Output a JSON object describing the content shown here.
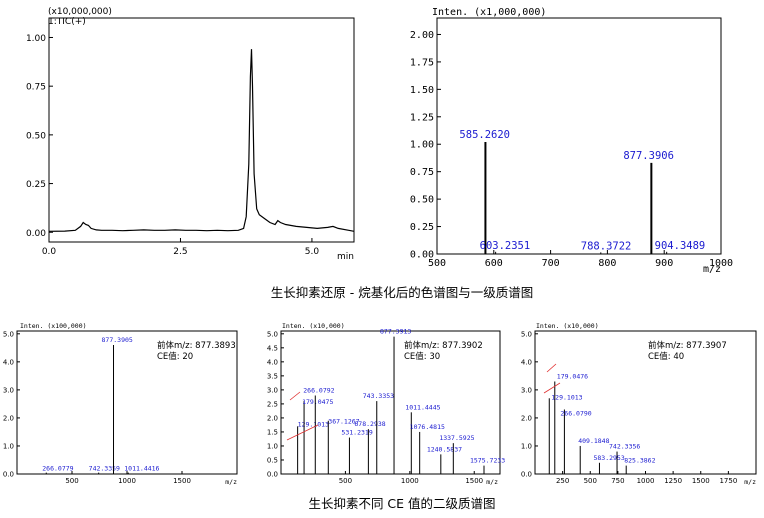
{
  "captions": {
    "top": "生长抑素还原 - 烷基化后的色谱图与一级质谱图",
    "bottom": "生长抑素不同 CE 值的二级质谱图"
  },
  "chart_data": [
    {
      "id": "tic",
      "type": "line",
      "scale_label": "(x10,000,000)",
      "series_label": "1:TIC(+)",
      "xlabel": "min",
      "xlim": [
        0,
        5.8
      ],
      "ylim": [
        -0.05,
        1.1
      ],
      "x_ticks": [
        "0.0",
        "2.5",
        "5.0"
      ],
      "x_tick_values": [
        0,
        2.5,
        5.0
      ],
      "y_ticks": [
        "0.00",
        "0.25",
        "0.50",
        "0.75",
        "1.00"
      ],
      "y_tick_values": [
        0,
        0.25,
        0.5,
        0.75,
        1.0
      ],
      "x": [
        0.0,
        0.3,
        0.5,
        0.6,
        0.65,
        0.7,
        0.75,
        0.8,
        0.9,
        1.0,
        1.2,
        1.4,
        1.6,
        1.8,
        2.0,
        2.2,
        2.4,
        2.6,
        2.8,
        3.0,
        3.2,
        3.4,
        3.6,
        3.7,
        3.75,
        3.8,
        3.83,
        3.85,
        3.87,
        3.9,
        3.95,
        4.0,
        4.1,
        4.2,
        4.3,
        4.35,
        4.4,
        4.5,
        4.7,
        4.9,
        5.1,
        5.3,
        5.4,
        5.5,
        5.7,
        5.8
      ],
      "y": [
        0.005,
        0.006,
        0.01,
        0.03,
        0.05,
        0.04,
        0.035,
        0.02,
        0.012,
        0.01,
        0.01,
        0.008,
        0.01,
        0.012,
        0.01,
        0.01,
        0.012,
        0.01,
        0.01,
        0.008,
        0.01,
        0.008,
        0.01,
        0.02,
        0.08,
        0.35,
        0.8,
        0.94,
        0.75,
        0.3,
        0.12,
        0.09,
        0.07,
        0.05,
        0.04,
        0.06,
        0.05,
        0.04,
        0.03,
        0.025,
        0.02,
        0.025,
        0.03,
        0.02,
        0.01,
        0.005
      ]
    },
    {
      "id": "ms1",
      "type": "bar",
      "scale_label": "Inten. (x1,000,000)",
      "xlabel": "m/z",
      "xlim": [
        500,
        1000
      ],
      "ylim": [
        0,
        2.15
      ],
      "x_ticks": [
        "500",
        "600",
        "700",
        "800",
        "900",
        "1000"
      ],
      "x_tick_values": [
        500,
        600,
        700,
        800,
        900,
        1000
      ],
      "y_ticks": [
        "0.00",
        "0.25",
        "0.50",
        "0.75",
        "1.00",
        "1.25",
        "1.50",
        "1.75",
        "2.00"
      ],
      "y_tick_values": [
        0,
        0.25,
        0.5,
        0.75,
        1.0,
        1.25,
        1.5,
        1.75,
        2.0
      ],
      "peaks": [
        {
          "mz": 585.262,
          "intensity": 1.02,
          "label": "585.2620"
        },
        {
          "mz": 603.2351,
          "intensity": 0.02,
          "label": "603.2351"
        },
        {
          "mz": 788.3722,
          "intensity": 0.015,
          "label": "788.3722"
        },
        {
          "mz": 877.3906,
          "intensity": 0.83,
          "label": "877.3906"
        },
        {
          "mz": 904.3489,
          "intensity": 0.02,
          "label": "904.3489"
        }
      ]
    },
    {
      "id": "ms2-ce20",
      "type": "bar",
      "scale_label": "Inten. (x100,000)",
      "xlabel": "m/z",
      "precursor_text": "前体m/z: 877.3893",
      "ce_text": "CE值: 20",
      "xlim": [
        0,
        2000
      ],
      "ylim": [
        0,
        5.1
      ],
      "x_ticks": [
        "500",
        "1000",
        "1500"
      ],
      "x_tick_values": [
        500,
        1000,
        1500
      ],
      "y_ticks": [
        "0.0",
        "1.0",
        "2.0",
        "3.0",
        "4.0",
        "5.0"
      ],
      "y_tick_values": [
        0,
        1,
        2,
        3,
        4,
        5
      ],
      "peaks": [
        {
          "mz": 266.0779,
          "intensity": 0.05,
          "label": "266.0779"
        },
        {
          "mz": 742.3359,
          "intensity": 0.05,
          "label": "742.3359"
        },
        {
          "mz": 877.3905,
          "intensity": 4.6,
          "label": "877.3905"
        },
        {
          "mz": 1011.4416,
          "intensity": 0.05,
          "label": "1011.4416"
        }
      ]
    },
    {
      "id": "ms2-ce30",
      "type": "bar",
      "scale_label": "Inten. (x10,000)",
      "xlabel": "m/z",
      "precursor_text": "前体m/z: 877.3902",
      "ce_text": "CE值: 30",
      "xlim": [
        0,
        1700
      ],
      "ylim": [
        0,
        5.1
      ],
      "x_ticks": [
        "500",
        "1000",
        "1500"
      ],
      "x_tick_values": [
        500,
        1000,
        1500
      ],
      "y_ticks": [
        "0.0",
        "0.5",
        "1.0",
        "1.5",
        "2.0",
        "2.5",
        "3.0",
        "3.5",
        "4.0",
        "4.5",
        "5.0"
      ],
      "y_tick_values": [
        0,
        0.5,
        1.0,
        1.5,
        2.0,
        2.5,
        3.0,
        3.5,
        4.0,
        4.5,
        5.0
      ],
      "peaks": [
        {
          "mz": 129.1013,
          "intensity": 1.7,
          "label": "129.1013"
        },
        {
          "mz": 179.0475,
          "intensity": 2.6,
          "label": "179.0475"
        },
        {
          "mz": 266.0792,
          "intensity": 2.8,
          "label": "266.0792"
        },
        {
          "mz": 367.1267,
          "intensity": 1.9,
          "label": "367.1267"
        },
        {
          "mz": 531.2319,
          "intensity": 1.3,
          "label": "531.2319"
        },
        {
          "mz": 678.2938,
          "intensity": 1.6,
          "label": "678.2938"
        },
        {
          "mz": 743.3353,
          "intensity": 2.6,
          "label": "743.3353"
        },
        {
          "mz": 877.3913,
          "intensity": 4.9,
          "label": "877.3913"
        },
        {
          "mz": 1011.4445,
          "intensity": 2.2,
          "label": "1011.4445"
        },
        {
          "mz": 1076.4815,
          "intensity": 1.5,
          "label": "1076.4815"
        },
        {
          "mz": 1240.5837,
          "intensity": 0.7,
          "label": "1240.5837"
        },
        {
          "mz": 1337.5925,
          "intensity": 1.1,
          "label": "1337.5925"
        },
        {
          "mz": 1575.7233,
          "intensity": 0.3,
          "label": "1575.7233"
        }
      ]
    },
    {
      "id": "ms2-ce40",
      "type": "bar",
      "scale_label": "Inten. (x10,000)",
      "xlabel": "m/z",
      "precursor_text": "前体m/z: 877.3907",
      "ce_text": "CE值: 40",
      "xlim": [
        0,
        2000
      ],
      "ylim": [
        0,
        5.1
      ],
      "x_ticks": [
        "250",
        "500",
        "750",
        "1000",
        "1250",
        "1500",
        "1750"
      ],
      "x_tick_values": [
        250,
        500,
        750,
        1000,
        1250,
        1500,
        1750
      ],
      "y_ticks": [
        "0.0",
        "1.0",
        "2.0",
        "3.0",
        "4.0",
        "5.0"
      ],
      "y_tick_values": [
        0,
        1,
        2,
        3,
        4,
        5
      ],
      "peaks": [
        {
          "mz": 129.1013,
          "intensity": 2.7,
          "label": "129.1013"
        },
        {
          "mz": 179.0476,
          "intensity": 3.3,
          "label": "179.0476"
        },
        {
          "mz": 266.079,
          "intensity": 2.3,
          "label": "266.0790"
        },
        {
          "mz": 409.1848,
          "intensity": 1.0,
          "label": "409.1848"
        },
        {
          "mz": 583.2953,
          "intensity": 0.4,
          "label": "583.2953"
        },
        {
          "mz": 742.3356,
          "intensity": 0.8,
          "label": "742.3356"
        },
        {
          "mz": 825.3862,
          "intensity": 0.3,
          "label": "825.3862"
        }
      ]
    }
  ]
}
